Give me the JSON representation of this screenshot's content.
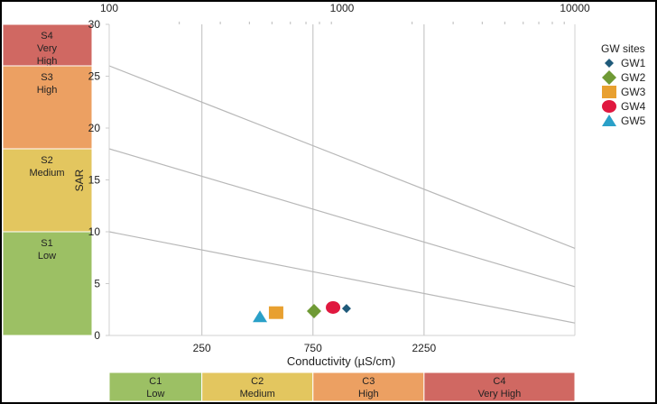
{
  "chart_data": {
    "type": "scatter",
    "xlabel": "Conductivity (µS/cm)",
    "ylabel": "SAR",
    "x_scale": "log",
    "xlim": [
      100,
      10000
    ],
    "ylim": [
      0,
      30
    ],
    "top_axis_ticks": [
      "100",
      "1000",
      "10000"
    ],
    "top_axis_values": [
      100,
      1000,
      10000
    ],
    "bottom_axis_ticks": [
      "250",
      "750",
      "2250"
    ],
    "bottom_axis_values": [
      250,
      750,
      2250
    ],
    "y_ticks": [
      0,
      5,
      10,
      15,
      20,
      25,
      30
    ],
    "grid": "vertical at class boundaries",
    "legend": {
      "title": "GW sites",
      "placement": "right"
    },
    "boundary_lines": [
      {
        "from": [
          100,
          26
        ],
        "to": [
          10000,
          8.4
        ]
      },
      {
        "from": [
          100,
          18
        ],
        "to": [
          10000,
          4.7
        ]
      },
      {
        "from": [
          100,
          10
        ],
        "to": [
          10000,
          1.2
        ]
      }
    ],
    "series": [
      {
        "name": "GW1",
        "marker": "diamond",
        "size": "small",
        "color": "#1f5a7a",
        "x": 1045,
        "y": 2.6
      },
      {
        "name": "GW2",
        "marker": "diamond",
        "size": "large",
        "color": "#6f9a35",
        "x": 758,
        "y": 2.35
      },
      {
        "name": "GW3",
        "marker": "square",
        "color": "#e8a030",
        "x": 521,
        "y": 2.2
      },
      {
        "name": "GW4",
        "marker": "circle",
        "color": "#e0183f",
        "x": 915,
        "y": 2.7
      },
      {
        "name": "GW5",
        "marker": "triangle",
        "color": "#2aa0c8",
        "x": 444,
        "y": 1.8
      }
    ],
    "sodium_classes": [
      {
        "code": "S4",
        "label": "Very High",
        "range": [
          26,
          30
        ],
        "color": "#d06862"
      },
      {
        "code": "S3",
        "label": "High",
        "range": [
          18,
          26
        ],
        "color": "#eca062"
      },
      {
        "code": "S2",
        "label": "Medium",
        "range": [
          10,
          18
        ],
        "color": "#e3c65f"
      },
      {
        "code": "S1",
        "label": "Low",
        "range": [
          0,
          10
        ],
        "color": "#9cc064"
      }
    ],
    "salinity_classes": [
      {
        "code": "C1",
        "label": "Low",
        "range": [
          100,
          250
        ],
        "color": "#9cc064"
      },
      {
        "code": "C2",
        "label": "Medium",
        "range": [
          250,
          750
        ],
        "color": "#e3c65f"
      },
      {
        "code": "C3",
        "label": "High",
        "range": [
          750,
          2250
        ],
        "color": "#eca062"
      },
      {
        "code": "C4",
        "label": "Very High",
        "range": [
          2250,
          10000
        ],
        "color": "#d06862"
      }
    ]
  }
}
